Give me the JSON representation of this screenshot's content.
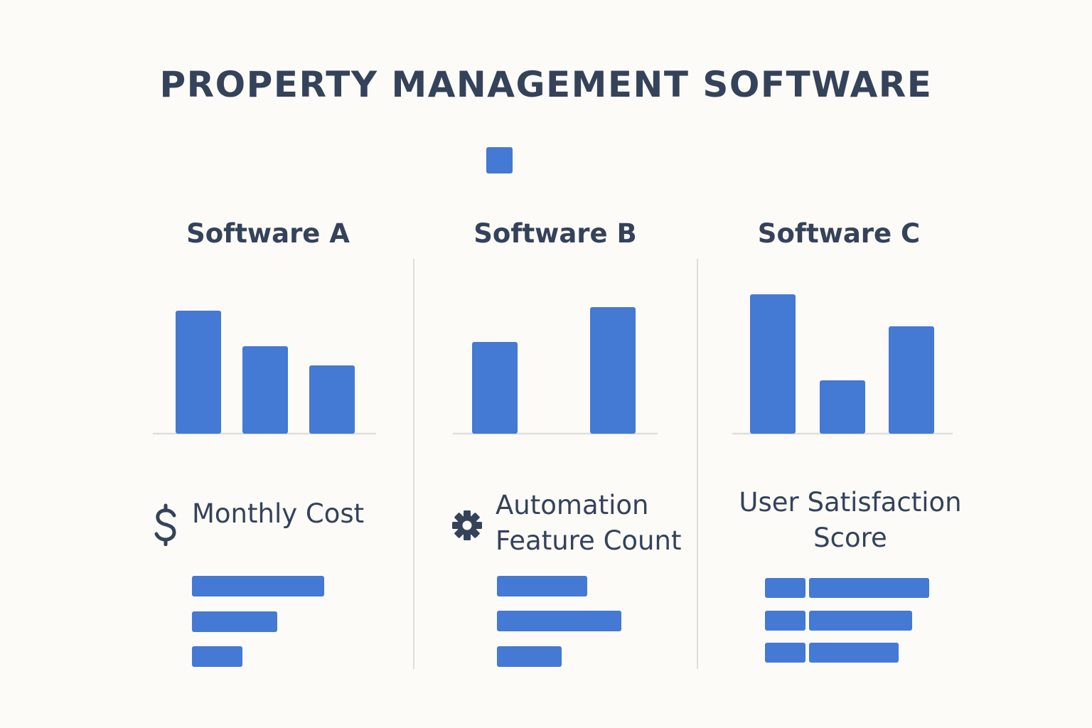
{
  "title": "PROPERTY MANAGEMENT SOFTWARE",
  "colors": {
    "bar": "#4479d4",
    "text": "#34425a",
    "axis": "#dedede",
    "background": "#fcfbf7"
  },
  "legend": {
    "swatch_color": "#4479d4"
  },
  "panels": [
    {
      "title": "Software A"
    },
    {
      "title": "Software B"
    },
    {
      "title": "Software C"
    }
  ],
  "metrics": [
    {
      "label": "Monthly Cost",
      "icon": "dollar-icon"
    },
    {
      "label_line1": "Automation",
      "label_line2": "Feature Count",
      "icon": "gear-icon"
    },
    {
      "label_line1": "User Satisfaction",
      "label_line2": "Score",
      "icon": ""
    }
  ],
  "chart_data": [
    {
      "type": "bar",
      "panel": "Software A",
      "values": [
        173,
        123,
        96
      ],
      "ylim": [
        0,
        200
      ]
    },
    {
      "type": "bar",
      "panel": "Software B",
      "values": [
        129,
        0,
        178
      ],
      "ylim": [
        0,
        200
      ]
    },
    {
      "type": "bar",
      "panel": "Software C",
      "values": [
        196,
        75,
        151
      ],
      "ylim": [
        0,
        200
      ]
    },
    {
      "type": "bar",
      "orientation": "horizontal",
      "metric": "Monthly Cost",
      "values": [
        186,
        120,
        71
      ],
      "xlim": [
        0,
        240
      ]
    },
    {
      "type": "bar",
      "orientation": "horizontal",
      "metric": "Automation Feature Count",
      "values": [
        127,
        175,
        91
      ],
      "xlim": [
        0,
        240
      ]
    },
    {
      "type": "bar",
      "orientation": "horizontal",
      "stacked": true,
      "metric": "User Satisfaction Score",
      "series_values": [
        [
          57,
          169
        ],
        [
          57,
          145
        ],
        [
          57,
          126
        ]
      ],
      "xlim": [
        0,
        240
      ]
    }
  ]
}
